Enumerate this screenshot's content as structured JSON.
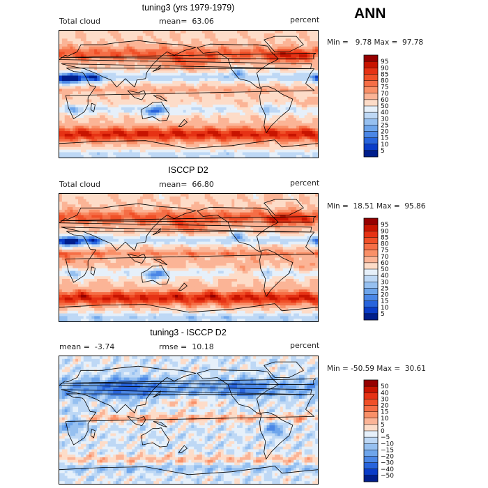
{
  "season": "ANN",
  "panels": [
    {
      "title": "tuning3 (yrs 1979-1979)",
      "left_label": "Total cloud",
      "center_label": "mean=  63.06",
      "right_label": "percent",
      "minmax": "Min =   9.78 Max =  97.78"
    },
    {
      "title": "ISCCP D2",
      "left_label": "Total cloud",
      "center_label": "mean=  66.80",
      "right_label": "percent",
      "minmax": "Min =  18.51 Max =  95.86"
    },
    {
      "title": "tuning3 - ISCCP D2",
      "left_label": "mean =  -3.74",
      "center_label": "rmse =  10.18",
      "right_label": "percent",
      "minmax": "Min = -50.59 Max =  30.61"
    }
  ],
  "chart_data": [
    {
      "type": "heatmap",
      "title": "tuning3 (yrs 1979-1979)",
      "variable": "Total cloud",
      "units": "percent",
      "mean": 63.06,
      "min": 9.78,
      "max": 97.78,
      "contour_levels": [
        "95",
        "90",
        "85",
        "80",
        "75",
        "70",
        "60",
        "50",
        "40",
        "30",
        "25",
        "20",
        "15",
        "10",
        "5"
      ],
      "colors": [
        "#960000",
        "#c81400",
        "#e63214",
        "#f05028",
        "#f56e46",
        "#f99068",
        "#fbb496",
        "#fddcc8",
        "#e6f0fa",
        "#bed8f5",
        "#96c0f0",
        "#6ea5eb",
        "#4b87e6",
        "#2864dc",
        "#0a3cc8",
        "#001e8c"
      ]
    },
    {
      "type": "heatmap",
      "title": "ISCCP D2",
      "variable": "Total cloud",
      "units": "percent",
      "mean": 66.8,
      "min": 18.51,
      "max": 95.86,
      "contour_levels": [
        "95",
        "90",
        "85",
        "80",
        "75",
        "70",
        "60",
        "50",
        "40",
        "30",
        "25",
        "20",
        "15",
        "10",
        "5"
      ],
      "colors": [
        "#960000",
        "#c81400",
        "#e63214",
        "#f05028",
        "#f56e46",
        "#f99068",
        "#fbb496",
        "#fddcc8",
        "#e6f0fa",
        "#bed8f5",
        "#96c0f0",
        "#6ea5eb",
        "#4b87e6",
        "#2864dc",
        "#0a3cc8",
        "#001e8c"
      ]
    },
    {
      "type": "heatmap",
      "title": "tuning3 - ISCCP D2",
      "units": "percent",
      "mean": -3.74,
      "rmse": 10.18,
      "min": -50.59,
      "max": 30.61,
      "contour_levels": [
        "50",
        "40",
        "30",
        "20",
        "15",
        "10",
        "5",
        "0",
        "−5",
        "−10",
        "−15",
        "−20",
        "−30",
        "−40",
        "−50"
      ],
      "colors": [
        "#960000",
        "#c81400",
        "#e63214",
        "#f05028",
        "#f56e46",
        "#f99068",
        "#fbb496",
        "#fddcc8",
        "#e6f0fa",
        "#bed8f5",
        "#96c0f0",
        "#6ea5eb",
        "#4b87e6",
        "#2864dc",
        "#0a3cc8",
        "#001e8c"
      ]
    }
  ]
}
